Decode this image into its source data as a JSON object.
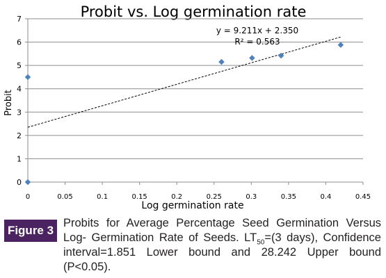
{
  "chart_data": {
    "type": "scatter",
    "title": "Probit vs. Log germination rate",
    "xlabel": "Log germination rate",
    "ylabel": "Probit",
    "xlim": [
      0,
      0.45
    ],
    "ylim": [
      0,
      7
    ],
    "x_ticks": [
      "0",
      "0.05",
      "0.1",
      "0.15",
      "0.2",
      "0.25",
      "0.3",
      "0.35",
      "0.4",
      "0.45"
    ],
    "y_ticks": [
      "0",
      "1",
      "2",
      "3",
      "4",
      "5",
      "6",
      "7"
    ],
    "grid": "horizontal",
    "points": [
      {
        "x": 0,
        "y": 4.5
      },
      {
        "x": 0,
        "y": 0
      },
      {
        "x": 0.26,
        "y": 5.15
      },
      {
        "x": 0.301,
        "y": 5.32
      },
      {
        "x": 0.34,
        "y": 5.42
      },
      {
        "x": 0.42,
        "y": 5.88
      }
    ],
    "trendline": {
      "slope": 9.211,
      "intercept": 2.35,
      "x_range": [
        0,
        0.42
      ]
    },
    "equation_label": "y = 9.211x + 2.350",
    "r2_label": "R² = 0.563",
    "colors": {
      "marker": "#4f81bd",
      "grid": "#8c8c8c",
      "trendline": "#000000"
    }
  },
  "caption": {
    "label": "Figure 3",
    "text_part1": "Probits for Average Percentage Seed Germination Versus Log- Germination Rate of Seeds. LT",
    "subscript": "50",
    "text_part2": "=(3 days), Confidence interval=1.851 Lower bound and 28.242 Upper bound (P<0.05).",
    "badge_color": "#4b2360"
  }
}
